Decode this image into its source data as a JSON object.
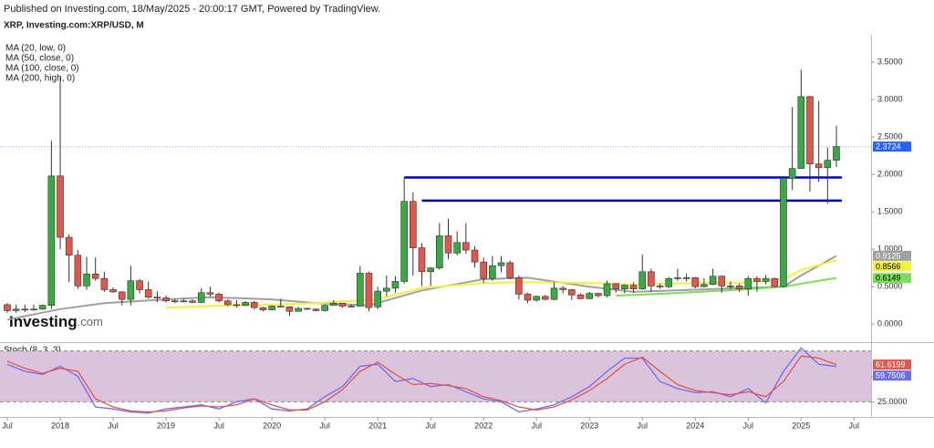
{
  "header": {
    "published": "Published on Investing.com, 18/May/2025 - 20:00:17 GMT, Powered by TradingView.",
    "symbol": "XRP, Investing.com:XRP/USD, M"
  },
  "legend": [
    "MA (20, low, 0)",
    "MA (50, close, 0)",
    "MA (100, close, 0)",
    "MA (200, high, 0)"
  ],
  "watermark": [
    "Investing",
    ".com"
  ],
  "chart_data": {
    "type": "candlestick",
    "categories": [
      "2017-07",
      "2017-08",
      "2017-09",
      "2017-10",
      "2017-11",
      "2017-12",
      "2018-01",
      "2018-02",
      "2018-03",
      "2018-04",
      "2018-05",
      "2018-06",
      "2018-07",
      "2018-08",
      "2018-09",
      "2018-10",
      "2018-11",
      "2018-12",
      "2019-01",
      "2019-02",
      "2019-03",
      "2019-04",
      "2019-05",
      "2019-06",
      "2019-07",
      "2019-08",
      "2019-09",
      "2019-10",
      "2019-11",
      "2019-12",
      "2020-01",
      "2020-02",
      "2020-03",
      "2020-04",
      "2020-05",
      "2020-06",
      "2020-07",
      "2020-08",
      "2020-09",
      "2020-10",
      "2020-11",
      "2020-12",
      "2021-01",
      "2021-02",
      "2021-03",
      "2021-04",
      "2021-05",
      "2021-06",
      "2021-07",
      "2021-08",
      "2021-09",
      "2021-10",
      "2021-11",
      "2021-12",
      "2022-01",
      "2022-02",
      "2022-03",
      "2022-04",
      "2022-05",
      "2022-06",
      "2022-07",
      "2022-08",
      "2022-09",
      "2022-10",
      "2022-11",
      "2022-12",
      "2023-01",
      "2023-02",
      "2023-03",
      "2023-04",
      "2023-05",
      "2023-06",
      "2023-07",
      "2023-08",
      "2023-09",
      "2023-10",
      "2023-11",
      "2023-12",
      "2024-01",
      "2024-02",
      "2024-03",
      "2024-04",
      "2024-05",
      "2024-06",
      "2024-07",
      "2024-08",
      "2024-09",
      "2024-10",
      "2024-11",
      "2024-12",
      "2025-01",
      "2025-02",
      "2025-03",
      "2025-04",
      "2025-05"
    ],
    "open": [
      0.26,
      0.18,
      0.2,
      0.19,
      0.2,
      0.25,
      1.98,
      1.16,
      0.92,
      0.51,
      0.67,
      0.61,
      0.46,
      0.43,
      0.33,
      0.58,
      0.46,
      0.36,
      0.35,
      0.31,
      0.31,
      0.31,
      0.29,
      0.42,
      0.4,
      0.31,
      0.26,
      0.25,
      0.29,
      0.22,
      0.19,
      0.24,
      0.23,
      0.17,
      0.21,
      0.2,
      0.18,
      0.25,
      0.28,
      0.24,
      0.24,
      0.68,
      0.23,
      0.44,
      0.48,
      0.57,
      1.64,
      1.02,
      0.7,
      0.75,
      1.18,
      0.95,
      1.09,
      0.99,
      0.83,
      0.61,
      0.78,
      0.82,
      0.62,
      0.4,
      0.32,
      0.37,
      0.33,
      0.48,
      0.46,
      0.39,
      0.34,
      0.41,
      0.38,
      0.54,
      0.47,
      0.52,
      0.47,
      0.7,
      0.51,
      0.5,
      0.61,
      0.62,
      0.62,
      0.5,
      0.53,
      0.64,
      0.51,
      0.51,
      0.47,
      0.61,
      0.57,
      0.61,
      0.5,
      1.95,
      2.08,
      3.04,
      2.14,
      2.09,
      2.19
    ],
    "high": [
      0.28,
      0.26,
      0.26,
      0.26,
      0.26,
      2.45,
      3.3,
      1.2,
      0.99,
      0.9,
      0.89,
      0.7,
      0.49,
      0.44,
      0.78,
      0.6,
      0.57,
      0.44,
      0.38,
      0.34,
      0.34,
      0.33,
      0.48,
      0.5,
      0.42,
      0.33,
      0.32,
      0.31,
      0.31,
      0.23,
      0.25,
      0.34,
      0.24,
      0.23,
      0.22,
      0.21,
      0.26,
      0.32,
      0.28,
      0.26,
      0.78,
      0.7,
      0.5,
      0.65,
      0.64,
      1.96,
      1.76,
      1.08,
      0.76,
      1.35,
      1.41,
      1.24,
      1.35,
      1.04,
      0.89,
      0.91,
      0.91,
      0.85,
      0.65,
      0.42,
      0.38,
      0.39,
      0.56,
      0.51,
      0.47,
      0.41,
      0.43,
      0.42,
      0.58,
      0.55,
      0.53,
      0.56,
      0.93,
      0.74,
      0.54,
      0.63,
      0.74,
      0.67,
      0.63,
      0.61,
      0.74,
      0.65,
      0.57,
      0.54,
      0.64,
      0.64,
      0.66,
      0.62,
      1.95,
      2.9,
      3.4,
      3.05,
      2.98,
      2.36,
      2.65
    ],
    "low": [
      0.15,
      0.15,
      0.16,
      0.18,
      0.19,
      0.2,
      1.0,
      0.56,
      0.47,
      0.46,
      0.58,
      0.43,
      0.42,
      0.25,
      0.25,
      0.41,
      0.34,
      0.29,
      0.29,
      0.28,
      0.29,
      0.28,
      0.28,
      0.37,
      0.29,
      0.24,
      0.22,
      0.24,
      0.2,
      0.17,
      0.19,
      0.23,
      0.11,
      0.17,
      0.19,
      0.17,
      0.17,
      0.25,
      0.22,
      0.23,
      0.23,
      0.17,
      0.2,
      0.37,
      0.42,
      0.54,
      0.65,
      0.51,
      0.51,
      0.73,
      0.87,
      0.92,
      0.94,
      0.76,
      0.55,
      0.58,
      0.69,
      0.6,
      0.33,
      0.28,
      0.3,
      0.32,
      0.32,
      0.41,
      0.32,
      0.33,
      0.33,
      0.36,
      0.36,
      0.42,
      0.41,
      0.42,
      0.46,
      0.43,
      0.47,
      0.48,
      0.58,
      0.57,
      0.48,
      0.49,
      0.52,
      0.42,
      0.47,
      0.43,
      0.38,
      0.43,
      0.53,
      0.49,
      0.49,
      1.79,
      2.08,
      1.77,
      1.9,
      1.61,
      2.1
    ],
    "close": [
      0.18,
      0.2,
      0.19,
      0.2,
      0.25,
      1.98,
      1.16,
      0.92,
      0.51,
      0.67,
      0.61,
      0.46,
      0.43,
      0.33,
      0.58,
      0.46,
      0.36,
      0.35,
      0.31,
      0.31,
      0.31,
      0.29,
      0.42,
      0.4,
      0.31,
      0.26,
      0.25,
      0.29,
      0.22,
      0.19,
      0.24,
      0.23,
      0.17,
      0.21,
      0.2,
      0.18,
      0.25,
      0.28,
      0.24,
      0.24,
      0.68,
      0.22,
      0.44,
      0.48,
      0.57,
      1.64,
      1.02,
      0.7,
      0.75,
      1.18,
      0.95,
      1.09,
      0.99,
      0.83,
      0.61,
      0.78,
      0.82,
      0.62,
      0.4,
      0.32,
      0.37,
      0.33,
      0.48,
      0.46,
      0.39,
      0.34,
      0.41,
      0.38,
      0.54,
      0.47,
      0.52,
      0.47,
      0.7,
      0.51,
      0.5,
      0.61,
      0.62,
      0.62,
      0.5,
      0.53,
      0.64,
      0.51,
      0.51,
      0.47,
      0.61,
      0.57,
      0.61,
      0.5,
      1.95,
      2.08,
      3.04,
      2.14,
      2.09,
      2.19,
      2.3724
    ],
    "up_color": "#3aa845",
    "down_color": "#e0574d",
    "ylim": [
      -0.2,
      3.8
    ],
    "yticks": [
      {
        "value": 0,
        "label": "0.0000"
      },
      {
        "value": 0.5,
        "label": "0.5000"
      },
      {
        "value": 1,
        "label": "1.0000"
      },
      {
        "value": 1.5,
        "label": "1.5000"
      },
      {
        "value": 2,
        "label": "2.0000"
      },
      {
        "value": 2.5,
        "label": "2.5000"
      },
      {
        "value": 3,
        "label": "3.0000"
      },
      {
        "value": 3.5,
        "label": "3.5000"
      }
    ],
    "xticks": [
      {
        "value": "2017-07",
        "label": "Jul"
      },
      {
        "value": "2018-01",
        "label": "2018"
      },
      {
        "value": "2018-07",
        "label": "Jul"
      },
      {
        "value": "2019-01",
        "label": "2019"
      },
      {
        "value": "2019-07",
        "label": "Jul"
      },
      {
        "value": "2020-01",
        "label": "2020"
      },
      {
        "value": "2020-07",
        "label": "Jul"
      },
      {
        "value": "2021-01",
        "label": "2021"
      },
      {
        "value": "2021-07",
        "label": "Jul"
      },
      {
        "value": "2022-01",
        "label": "2022"
      },
      {
        "value": "2022-07",
        "label": "Jul"
      },
      {
        "value": "2023-01",
        "label": "2023"
      },
      {
        "value": "2023-07",
        "label": "Jul"
      },
      {
        "value": "2024-01",
        "label": "2024"
      },
      {
        "value": "2024-07",
        "label": "Jul"
      },
      {
        "value": "2025-01",
        "label": "2025"
      },
      {
        "value": "2025-07",
        "label": "Jul"
      }
    ],
    "price_line_color": "#2962ff",
    "levels": [
      {
        "value": 1.96,
        "from": "2021-04",
        "to": "2025-05"
      },
      {
        "value": 1.65,
        "from": "2021-06",
        "to": "2025-05"
      }
    ],
    "level_color": "#0000cc",
    "ma_series": [
      {
        "color": "#a0a0a0",
        "text_color": "#ffffff",
        "x": [
          "2017-07",
          "2018-01",
          "2018-06",
          "2019-01",
          "2019-06",
          "2020-01",
          "2020-06",
          "2020-12",
          "2021-06",
          "2022-01",
          "2022-06",
          "2023-01",
          "2023-06",
          "2024-01",
          "2024-06",
          "2024-11",
          "2025-01",
          "2025-05"
        ],
        "values": [
          0.06,
          0.2,
          0.28,
          0.33,
          0.36,
          0.33,
          0.28,
          0.25,
          0.45,
          0.6,
          0.62,
          0.5,
          0.43,
          0.46,
          0.48,
          0.5,
          0.65,
          0.9125
        ]
      },
      {
        "color": "#f2f23a",
        "text_color": "#000000",
        "x": [
          "2019-01",
          "2019-06",
          "2020-01",
          "2020-06",
          "2021-01",
          "2021-06",
          "2022-01",
          "2022-06",
          "2023-01",
          "2023-06",
          "2024-01",
          "2024-06",
          "2024-11",
          "2025-01",
          "2025-05"
        ],
        "values": [
          0.22,
          0.24,
          0.26,
          0.28,
          0.33,
          0.48,
          0.55,
          0.56,
          0.55,
          0.53,
          0.55,
          0.55,
          0.6,
          0.72,
          0.8566
        ]
      },
      {
        "color": "#7ddc5a",
        "text_color": "#000000",
        "x": [
          "2023-04",
          "2023-10",
          "2024-06",
          "2024-11",
          "2025-02",
          "2025-05"
        ],
        "values": [
          0.38,
          0.41,
          0.46,
          0.5,
          0.56,
          0.6149
        ]
      }
    ],
    "stoch": {
      "title": "Stoch (8, 3, 3)",
      "ylim": [
        11,
        81
      ],
      "yticks": [
        {
          "value": 25,
          "label": "25.0000"
        },
        {
          "value": 50,
          "label": "50.0000"
        }
      ],
      "band": [
        25,
        75
      ],
      "band_color": "#dcc3dc",
      "x": [
        "2017-07",
        "2017-09",
        "2017-11",
        "2018-01",
        "2018-03",
        "2018-05",
        "2018-07",
        "2018-09",
        "2018-11",
        "2019-01",
        "2019-03",
        "2019-05",
        "2019-07",
        "2019-09",
        "2019-11",
        "2020-01",
        "2020-03",
        "2020-05",
        "2020-07",
        "2020-09",
        "2020-11",
        "2021-01",
        "2021-03",
        "2021-05",
        "2021-07",
        "2021-09",
        "2021-11",
        "2022-01",
        "2022-03",
        "2022-05",
        "2022-07",
        "2022-09",
        "2022-11",
        "2023-01",
        "2023-03",
        "2023-05",
        "2023-07",
        "2023-09",
        "2023-11",
        "2024-01",
        "2024-03",
        "2024-05",
        "2024-07",
        "2024-09",
        "2024-11",
        "2025-01",
        "2025-03",
        "2025-05"
      ],
      "series": [
        {
          "color": "#6f6cf0",
          "values": [
            62,
            55,
            52,
            60,
            50,
            20,
            18,
            15,
            14,
            18,
            20,
            22,
            18,
            25,
            28,
            18,
            16,
            18,
            30,
            40,
            60,
            62,
            45,
            48,
            40,
            42,
            35,
            28,
            25,
            15,
            18,
            22,
            30,
            40,
            55,
            68,
            68,
            45,
            38,
            34,
            35,
            30,
            38,
            24,
            55,
            78,
            62,
            59.7506
          ]
        },
        {
          "color": "#e0574d",
          "values": [
            65,
            58,
            53,
            58,
            55,
            28,
            20,
            16,
            15,
            16,
            19,
            21,
            20,
            22,
            28,
            22,
            17,
            17,
            25,
            37,
            55,
            64,
            52,
            42,
            43,
            41,
            38,
            30,
            26,
            20,
            17,
            20,
            27,
            36,
            48,
            62,
            69,
            55,
            42,
            36,
            34,
            32,
            35,
            30,
            45,
            70,
            68,
            61.6199
          ]
        }
      ]
    }
  }
}
